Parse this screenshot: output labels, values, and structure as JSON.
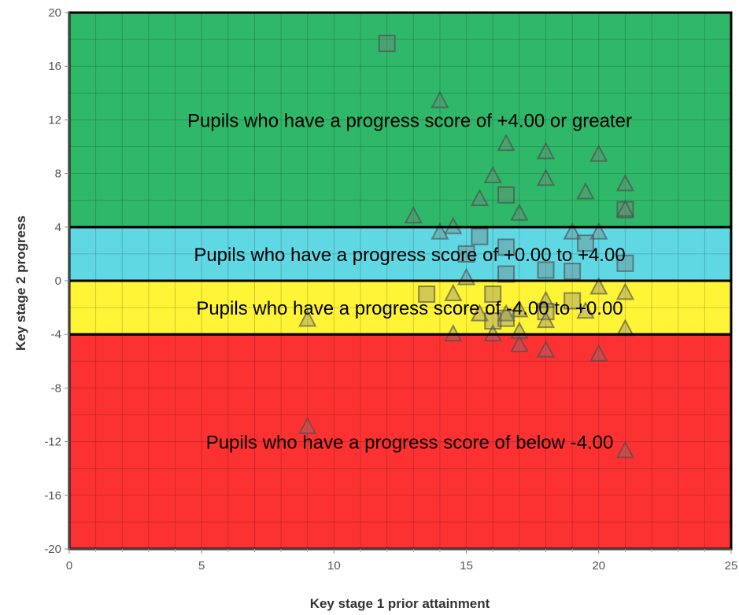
{
  "chart_data": {
    "type": "scatter",
    "xlabel": "Key stage 1 prior attainment",
    "ylabel": "Key stage 2 progress",
    "xlim": [
      0,
      25
    ],
    "ylim": [
      -20,
      20
    ],
    "x_ticks": [
      0,
      5,
      10,
      15,
      20,
      25
    ],
    "y_ticks": [
      -20,
      -16,
      -12,
      -8,
      -4,
      0,
      4,
      8,
      12,
      16,
      20
    ],
    "grid": true,
    "bands": [
      {
        "label": "Pupils who have a progress score of +4.00 or greater",
        "ymin": 4,
        "ymax": 20,
        "color": "#2fb86a"
      },
      {
        "label": "Pupils who have a progress score of +0.00 to +4.00",
        "ymin": 0,
        "ymax": 4,
        "color": "#5fd8e3"
      },
      {
        "label": "Pupils who have a progress score of -4.00 to +0.00",
        "ymin": -4,
        "ymax": 0,
        "color": "#fff536"
      },
      {
        "label": "Pupils who have a progress score of below -4.00",
        "ymin": -20,
        "ymax": -4,
        "color": "#fc3232"
      }
    ],
    "points": [
      {
        "x": 12,
        "y": 17.7,
        "shape": "square"
      },
      {
        "x": 14,
        "y": 13.4,
        "shape": "triangle"
      },
      {
        "x": 16.5,
        "y": 10.2,
        "shape": "triangle"
      },
      {
        "x": 18,
        "y": 9.6,
        "shape": "triangle"
      },
      {
        "x": 20,
        "y": 9.4,
        "shape": "triangle"
      },
      {
        "x": 16,
        "y": 7.8,
        "shape": "triangle"
      },
      {
        "x": 18,
        "y": 7.6,
        "shape": "triangle"
      },
      {
        "x": 21,
        "y": 7.2,
        "shape": "triangle"
      },
      {
        "x": 19.5,
        "y": 6.6,
        "shape": "triangle"
      },
      {
        "x": 16.5,
        "y": 6.4,
        "shape": "square"
      },
      {
        "x": 15.5,
        "y": 6.1,
        "shape": "triangle"
      },
      {
        "x": 21,
        "y": 5.3,
        "shape": "square"
      },
      {
        "x": 21,
        "y": 5.3,
        "shape": "triangle"
      },
      {
        "x": 17,
        "y": 5.0,
        "shape": "triangle"
      },
      {
        "x": 13,
        "y": 4.8,
        "shape": "triangle"
      },
      {
        "x": 14.5,
        "y": 4.0,
        "shape": "triangle"
      },
      {
        "x": 14,
        "y": 3.6,
        "shape": "triangle"
      },
      {
        "x": 15.5,
        "y": 3.3,
        "shape": "square"
      },
      {
        "x": 19,
        "y": 3.6,
        "shape": "triangle"
      },
      {
        "x": 20,
        "y": 3.6,
        "shape": "triangle"
      },
      {
        "x": 19.5,
        "y": 2.8,
        "shape": "square"
      },
      {
        "x": 16.5,
        "y": 2.5,
        "shape": "square"
      },
      {
        "x": 15,
        "y": 2.0,
        "shape": "square"
      },
      {
        "x": 21,
        "y": 1.3,
        "shape": "square"
      },
      {
        "x": 18,
        "y": 0.8,
        "shape": "square"
      },
      {
        "x": 19,
        "y": 0.7,
        "shape": "square"
      },
      {
        "x": 16.5,
        "y": 0.5,
        "shape": "square"
      },
      {
        "x": 15,
        "y": 0.2,
        "shape": "triangle"
      },
      {
        "x": 20,
        "y": -0.5,
        "shape": "triangle"
      },
      {
        "x": 13.5,
        "y": -1.0,
        "shape": "square"
      },
      {
        "x": 14.5,
        "y": -1.0,
        "shape": "triangle"
      },
      {
        "x": 16,
        "y": -1.0,
        "shape": "square"
      },
      {
        "x": 21,
        "y": -0.9,
        "shape": "triangle"
      },
      {
        "x": 18,
        "y": -1.5,
        "shape": "triangle"
      },
      {
        "x": 19,
        "y": -1.5,
        "shape": "square"
      },
      {
        "x": 17,
        "y": -2.2,
        "shape": "triangle"
      },
      {
        "x": 16.5,
        "y": -2.5,
        "shape": "triangle"
      },
      {
        "x": 18,
        "y": -2.3,
        "shape": "square"
      },
      {
        "x": 19.5,
        "y": -2.3,
        "shape": "triangle"
      },
      {
        "x": 15.5,
        "y": -2.5,
        "shape": "triangle"
      },
      {
        "x": 16.5,
        "y": -2.8,
        "shape": "square"
      },
      {
        "x": 9,
        "y": -2.9,
        "shape": "triangle"
      },
      {
        "x": 16,
        "y": -3.0,
        "shape": "square"
      },
      {
        "x": 18,
        "y": -3.0,
        "shape": "triangle"
      },
      {
        "x": 21,
        "y": -3.6,
        "shape": "triangle"
      },
      {
        "x": 14.5,
        "y": -4.0,
        "shape": "triangle"
      },
      {
        "x": 16,
        "y": -4.0,
        "shape": "triangle"
      },
      {
        "x": 17,
        "y": -3.8,
        "shape": "triangle"
      },
      {
        "x": 17,
        "y": -4.8,
        "shape": "triangle"
      },
      {
        "x": 18,
        "y": -5.2,
        "shape": "triangle"
      },
      {
        "x": 20,
        "y": -5.5,
        "shape": "triangle"
      },
      {
        "x": 9,
        "y": -10.9,
        "shape": "triangle"
      },
      {
        "x": 21,
        "y": -12.7,
        "shape": "triangle"
      }
    ]
  },
  "point_style": {
    "marker_fill": "#7a7a7a",
    "marker_stroke": "#4a4a4a",
    "gridline_color": "#000000",
    "band_border_color": "#000000"
  }
}
